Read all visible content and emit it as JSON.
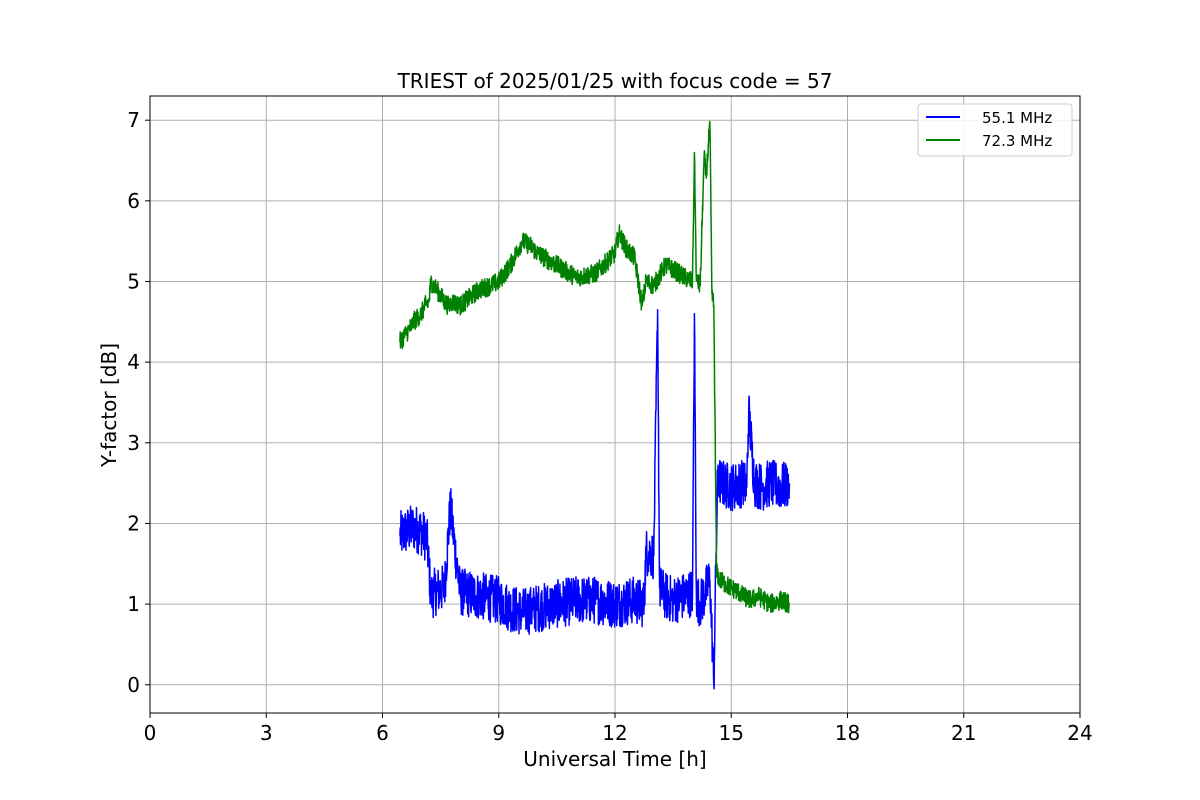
{
  "chart_data": {
    "type": "line",
    "title": "TRIEST of 2025/01/25 with focus code = 57",
    "xlabel": "Universal Time [h]",
    "ylabel": "Y-factor [dB]",
    "xlim": [
      0,
      24
    ],
    "ylim": [
      -0.35,
      7.3
    ],
    "xticks": [
      0,
      3,
      6,
      9,
      12,
      15,
      18,
      21,
      24
    ],
    "yticks": [
      0,
      1,
      2,
      3,
      4,
      5,
      6,
      7
    ],
    "grid": true,
    "legend_position": "top-right",
    "series": [
      {
        "name": "55.1 MHz",
        "color": "#0000ff",
        "x": [
          6.45,
          6.6,
          6.8,
          7.0,
          7.15,
          7.25,
          7.35,
          7.6,
          7.75,
          8.0,
          8.5,
          9.0,
          9.3,
          9.6,
          10.0,
          10.5,
          11.0,
          11.5,
          12.0,
          12.5,
          12.75,
          12.8,
          13.0,
          13.1,
          13.15,
          13.3,
          13.5,
          13.8,
          14.0,
          14.05,
          14.1,
          14.2,
          14.45,
          14.55,
          14.6,
          14.65,
          14.75,
          15.0,
          15.3,
          15.4,
          15.45,
          15.6,
          15.8,
          16.0,
          16.3,
          16.5
        ],
        "y": [
          1.85,
          1.9,
          1.95,
          1.9,
          1.8,
          1.1,
          1.15,
          1.2,
          2.2,
          1.15,
          1.1,
          1.05,
          0.95,
          0.9,
          0.95,
          1.0,
          1.05,
          1.05,
          1.0,
          1.05,
          1.0,
          1.65,
          1.6,
          4.65,
          1.2,
          1.1,
          1.05,
          1.1,
          1.15,
          4.6,
          1.1,
          1.0,
          1.3,
          0.0,
          1.4,
          2.55,
          2.5,
          2.45,
          2.5,
          2.45,
          3.4,
          2.5,
          2.45,
          2.5,
          2.45,
          2.5
        ]
      },
      {
        "name": "72.3 MHz",
        "color": "#008000",
        "x": [
          6.45,
          6.6,
          6.75,
          6.8,
          7.0,
          7.1,
          7.2,
          7.25,
          7.4,
          7.6,
          7.7,
          7.8,
          8.0,
          8.5,
          8.8,
          9.0,
          9.3,
          9.5,
          9.6,
          9.8,
          10.0,
          10.5,
          11.0,
          11.5,
          12.0,
          12.1,
          12.3,
          12.5,
          12.7,
          12.8,
          13.0,
          13.3,
          13.5,
          13.8,
          14.0,
          14.05,
          14.1,
          14.2,
          14.3,
          14.35,
          14.45,
          14.5,
          14.55,
          14.62,
          14.7,
          15.0,
          15.2,
          15.3,
          15.5,
          15.7,
          16.0,
          16.3,
          16.5
        ],
        "y": [
          4.25,
          4.35,
          4.45,
          4.5,
          4.6,
          4.7,
          4.75,
          5.0,
          4.9,
          4.75,
          4.7,
          4.75,
          4.7,
          4.9,
          4.95,
          5.0,
          5.2,
          5.4,
          5.5,
          5.45,
          5.35,
          5.2,
          5.05,
          5.1,
          5.35,
          5.6,
          5.4,
          5.3,
          4.7,
          5.0,
          4.95,
          5.2,
          5.15,
          5.05,
          5.0,
          6.6,
          5.0,
          4.95,
          6.55,
          6.3,
          6.95,
          4.85,
          4.7,
          1.4,
          1.3,
          1.2,
          1.15,
          1.1,
          1.05,
          1.1,
          1.0,
          1.05,
          1.0
        ]
      }
    ]
  }
}
